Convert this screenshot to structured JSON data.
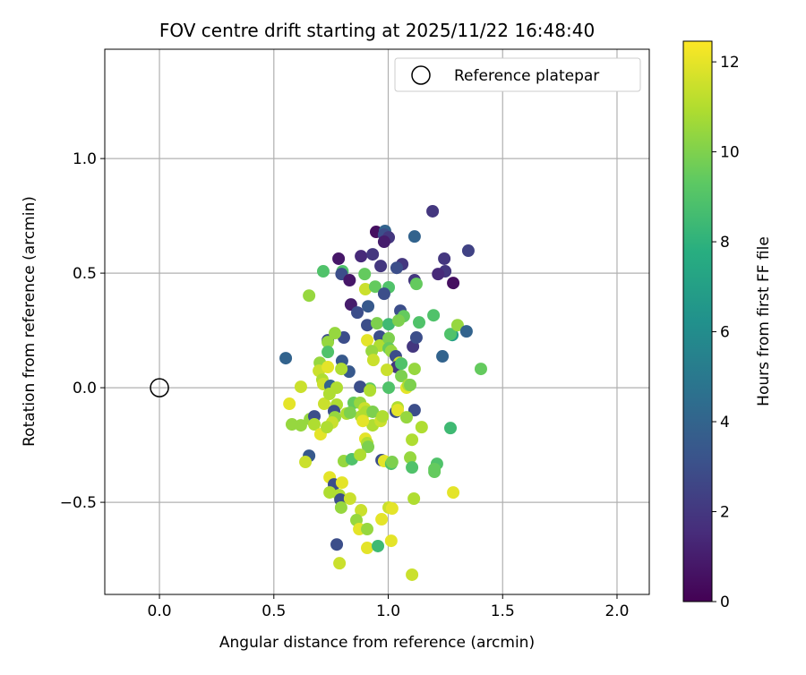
{
  "chart_data": {
    "type": "scatter",
    "title": "FOV centre drift starting at 2025/11/22 16:48:40",
    "xlabel": "Angular distance from reference (arcmin)",
    "ylabel": "Rotation from reference (arcmin)",
    "xlim": [
      -0.239,
      2.141
    ],
    "ylim": [
      -0.902,
      1.477
    ],
    "xticks": [
      0.0,
      0.5,
      1.0,
      1.5,
      2.0
    ],
    "xtick_labels": [
      "0.0",
      "0.5",
      "1.0",
      "1.5",
      "2.0"
    ],
    "yticks": [
      -0.5,
      0.0,
      0.5,
      1.0
    ],
    "ytick_labels": [
      "−0.5",
      "0.0",
      "0.5",
      "1.0"
    ],
    "grid": true,
    "legend": {
      "placement": "top-right",
      "entries": [
        "Reference platepar"
      ]
    },
    "reference_point": {
      "x": 0.0,
      "y": 0.0
    },
    "colorbar": {
      "label": "Hours from first FF file",
      "range": [
        0,
        12.46
      ],
      "ticks": [
        0,
        2,
        4,
        6,
        8,
        10,
        12
      ],
      "tick_labels": [
        "0",
        "2",
        "4",
        "6",
        "8",
        "10",
        "12"
      ],
      "colormap": "viridis"
    },
    "series": [
      {
        "name": "FOV centre",
        "columns": [
          "x",
          "y",
          "hours"
        ],
        "points": [
          [
            1.194,
            0.77,
            2
          ],
          [
            0.947,
            0.68,
            0.5
          ],
          [
            0.986,
            0.684,
            4
          ],
          [
            0.982,
            0.668,
            3
          ],
          [
            1.002,
            0.656,
            2
          ],
          [
            0.982,
            0.637,
            1
          ],
          [
            1.115,
            0.66,
            4
          ],
          [
            1.35,
            0.598,
            2.5
          ],
          [
            0.783,
            0.563,
            0.8
          ],
          [
            0.881,
            0.574,
            1.5
          ],
          [
            0.932,
            0.582,
            2
          ],
          [
            0.967,
            0.531,
            2
          ],
          [
            1.061,
            0.539,
            2
          ],
          [
            1.037,
            0.523,
            3
          ],
          [
            1.245,
            0.563,
            2
          ],
          [
            1.249,
            0.508,
            2
          ],
          [
            1.218,
            0.496,
            1.5
          ],
          [
            1.284,
            0.457,
            0.5
          ],
          [
            0.716,
            0.508,
            9
          ],
          [
            0.8,
            0.508,
            9
          ],
          [
            0.796,
            0.496,
            3
          ],
          [
            0.831,
            0.469,
            0.8
          ],
          [
            0.897,
            0.496,
            9.5
          ],
          [
            1.115,
            0.469,
            2
          ],
          [
            1.123,
            0.453,
            9.5
          ],
          [
            0.9,
            0.43,
            11.5
          ],
          [
            0.943,
            0.441,
            9.5
          ],
          [
            1.002,
            0.438,
            9
          ],
          [
            0.654,
            0.402,
            10.5
          ],
          [
            0.982,
            0.41,
            3
          ],
          [
            0.837,
            0.363,
            1
          ],
          [
            0.865,
            0.328,
            3
          ],
          [
            0.912,
            0.355,
            3.5
          ],
          [
            1.053,
            0.336,
            3
          ],
          [
            1.068,
            0.312,
            9.5
          ],
          [
            1.198,
            0.316,
            9
          ],
          [
            0.908,
            0.273,
            3
          ],
          [
            0.951,
            0.281,
            10
          ],
          [
            1.002,
            0.277,
            8.5
          ],
          [
            1.045,
            0.293,
            10
          ],
          [
            1.135,
            0.285,
            9
          ],
          [
            1.28,
            0.23,
            7
          ],
          [
            1.272,
            0.234,
            9
          ],
          [
            1.303,
            0.273,
            10.5
          ],
          [
            1.342,
            0.246,
            4
          ],
          [
            0.806,
            0.219,
            3
          ],
          [
            0.736,
            0.207,
            3
          ],
          [
            0.736,
            0.199,
            10.5
          ],
          [
            0.767,
            0.238,
            10.5
          ],
          [
            0.908,
            0.207,
            12
          ],
          [
            0.963,
            0.223,
            3
          ],
          [
            0.963,
            0.184,
            11
          ],
          [
            1.002,
            0.215,
            10
          ],
          [
            1.108,
            0.18,
            2
          ],
          [
            1.123,
            0.219,
            3
          ],
          [
            0.552,
            0.129,
            4
          ],
          [
            0.736,
            0.156,
            9
          ],
          [
            0.701,
            0.109,
            10.5
          ],
          [
            0.798,
            0.117,
            3.5
          ],
          [
            0.829,
            0.07,
            3.5
          ],
          [
            0.928,
            0.16,
            10.5
          ],
          [
            0.935,
            0.121,
            11.5
          ],
          [
            1.002,
            0.172,
            9.5
          ],
          [
            1.013,
            0.16,
            10.5
          ],
          [
            1.033,
            0.137,
            3
          ],
          [
            1.049,
            0.109,
            11.5
          ],
          [
            1.037,
            0.09,
            2
          ],
          [
            1.057,
            0.105,
            9
          ],
          [
            1.115,
            0.082,
            10.5
          ],
          [
            1.237,
            0.137,
            4
          ],
          [
            1.405,
            0.082,
            9.5
          ],
          [
            0.697,
            0.074,
            11.5
          ],
          [
            0.736,
            0.09,
            12
          ],
          [
            0.795,
            0.082,
            11
          ],
          [
            0.712,
            0.035,
            11
          ],
          [
            0.716,
            0.016,
            11.5
          ],
          [
            0.747,
            0.008,
            4
          ],
          [
            0.775,
            0.0,
            11
          ],
          [
            0.618,
            0.004,
            11.5
          ],
          [
            0.92,
            -0.004,
            9.5
          ],
          [
            1.002,
            0.0,
            9
          ],
          [
            1.057,
            0.051,
            10
          ],
          [
            0.994,
            0.078,
            11.5
          ],
          [
            1.08,
            0.0,
            12
          ],
          [
            1.088,
            0.012,
            11
          ],
          [
            1.096,
            0.012,
            10
          ],
          [
            0.568,
            -0.07,
            12
          ],
          [
            0.618,
            -0.164,
            10.5
          ],
          [
            0.658,
            -0.137,
            10.5
          ],
          [
            0.677,
            -0.125,
            3
          ],
          [
            0.677,
            -0.16,
            11
          ],
          [
            0.654,
            -0.297,
            3.5
          ],
          [
            0.638,
            -0.324,
            11.5
          ],
          [
            0.704,
            -0.203,
            12
          ],
          [
            0.72,
            -0.07,
            11.5
          ],
          [
            0.743,
            -0.027,
            11
          ],
          [
            0.775,
            -0.074,
            11
          ],
          [
            0.763,
            -0.102,
            3
          ],
          [
            0.767,
            -0.129,
            10.5
          ],
          [
            0.755,
            -0.152,
            11.5
          ],
          [
            0.732,
            -0.172,
            11
          ],
          [
            0.877,
            0.004,
            3
          ],
          [
            0.849,
            -0.066,
            9.5
          ],
          [
            0.877,
            -0.066,
            10.5
          ],
          [
            0.92,
            -0.012,
            11
          ],
          [
            0.897,
            -0.09,
            11.5
          ],
          [
            0.904,
            -0.105,
            11
          ],
          [
            0.932,
            -0.105,
            10
          ],
          [
            0.932,
            -0.164,
            11
          ],
          [
            0.881,
            -0.125,
            11
          ],
          [
            0.889,
            -0.145,
            12
          ],
          [
            0.818,
            -0.113,
            11
          ],
          [
            0.833,
            -0.109,
            10
          ],
          [
            0.967,
            -0.145,
            11.5
          ],
          [
            0.975,
            -0.125,
            11
          ],
          [
            1.033,
            -0.105,
            3
          ],
          [
            1.041,
            -0.086,
            11
          ],
          [
            1.041,
            -0.098,
            12
          ],
          [
            1.115,
            -0.098,
            3
          ],
          [
            1.08,
            -0.129,
            10.5
          ],
          [
            1.146,
            -0.172,
            11
          ],
          [
            1.272,
            -0.176,
            8.5
          ],
          [
            1.104,
            -0.227,
            11
          ],
          [
            0.9,
            -0.223,
            12
          ],
          [
            0.908,
            -0.242,
            11
          ],
          [
            0.912,
            -0.258,
            10
          ],
          [
            0.806,
            -0.32,
            10.5
          ],
          [
            0.841,
            -0.312,
            9
          ],
          [
            0.877,
            -0.293,
            11
          ],
          [
            0.971,
            -0.316,
            3
          ],
          [
            0.982,
            -0.32,
            12
          ],
          [
            1.013,
            -0.332,
            9
          ],
          [
            1.017,
            -0.324,
            10
          ],
          [
            1.096,
            -0.305,
            10.5
          ],
          [
            1.104,
            -0.348,
            9
          ],
          [
            1.213,
            -0.332,
            9
          ],
          [
            1.202,
            -0.355,
            9.5
          ],
          [
            1.202,
            -0.367,
            9.5
          ],
          [
            0.744,
            -0.391,
            12
          ],
          [
            0.763,
            -0.422,
            3
          ],
          [
            0.798,
            -0.414,
            12
          ],
          [
            0.744,
            -0.457,
            11
          ],
          [
            0.786,
            -0.469,
            11
          ],
          [
            0.791,
            -0.488,
            3
          ],
          [
            0.833,
            -0.484,
            11.5
          ],
          [
            0.794,
            -0.523,
            10.5
          ],
          [
            0.881,
            -0.535,
            11.5
          ],
          [
            1.002,
            -0.523,
            11.5
          ],
          [
            1.017,
            -0.527,
            12
          ],
          [
            1.112,
            -0.484,
            11
          ],
          [
            1.284,
            -0.457,
            12
          ],
          [
            0.861,
            -0.578,
            10.5
          ],
          [
            0.971,
            -0.574,
            12
          ],
          [
            0.873,
            -0.617,
            12
          ],
          [
            0.908,
            -0.617,
            10.5
          ],
          [
            0.775,
            -0.684,
            3
          ],
          [
            0.908,
            -0.699,
            12
          ],
          [
            0.955,
            -0.691,
            8.5
          ],
          [
            1.013,
            -0.668,
            12
          ],
          [
            0.787,
            -0.766,
            11.5
          ],
          [
            1.104,
            -0.816,
            11.5
          ],
          [
            0.579,
            -0.16,
            10.5
          ]
        ]
      }
    ]
  }
}
